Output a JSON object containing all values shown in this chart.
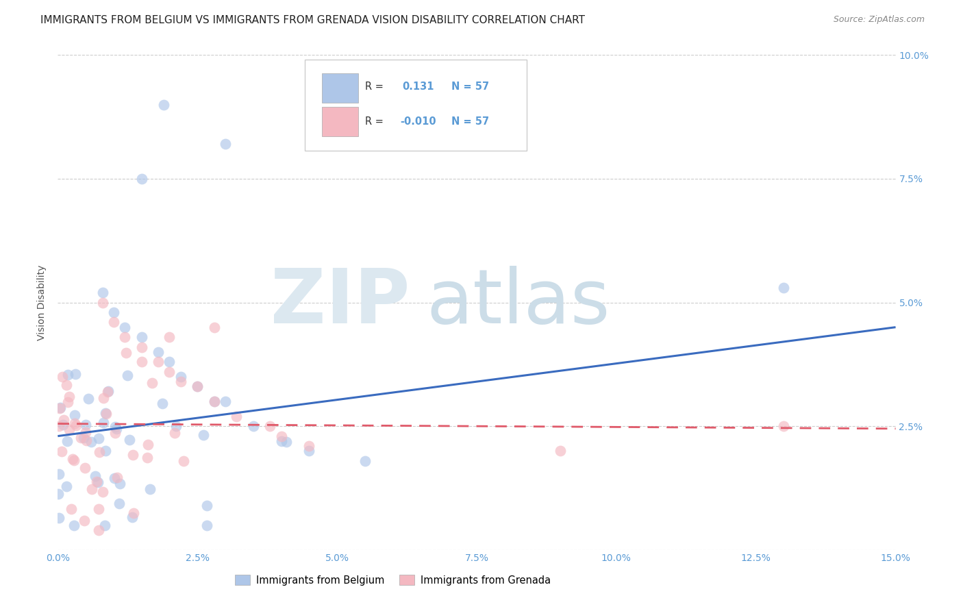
{
  "title": "IMMIGRANTS FROM BELGIUM VS IMMIGRANTS FROM GRENADA VISION DISABILITY CORRELATION CHART",
  "source": "Source: ZipAtlas.com",
  "ylabel": "Vision Disability",
  "xlim": [
    0.0,
    0.15
  ],
  "ylim": [
    0.0,
    0.1
  ],
  "xticks": [
    0.0,
    0.025,
    0.05,
    0.075,
    0.1,
    0.125,
    0.15
  ],
  "xticklabels": [
    "0.0%",
    "2.5%",
    "5.0%",
    "7.5%",
    "10.0%",
    "12.5%",
    "15.0%"
  ],
  "yticks": [
    0.0,
    0.025,
    0.05,
    0.075,
    0.1
  ],
  "yticklabels_right": [
    "",
    "2.5%",
    "5.0%",
    "7.5%",
    "10.0%"
  ],
  "grid_color": "#cccccc",
  "background_color": "#ffffff",
  "belgium_color": "#aec6e8",
  "grenada_color": "#f4b8c1",
  "belgium_line_color": "#3a6bbf",
  "grenada_line_color": "#e05a6a",
  "r_belgium": 0.131,
  "r_grenada": -0.01,
  "n_belgium": 57,
  "n_grenada": 57,
  "legend_label_belgium": "Immigrants from Belgium",
  "legend_label_grenada": "Immigrants from Grenada",
  "tick_color": "#5b9bd5",
  "ylabel_color": "#555555",
  "title_fontsize": 11,
  "axis_label_fontsize": 10,
  "tick_fontsize": 10,
  "bel_line_x0": 0.0,
  "bel_line_y0": 0.023,
  "bel_line_x1": 0.15,
  "bel_line_y1": 0.045,
  "gren_line_x0": 0.0,
  "gren_line_y0": 0.0255,
  "gren_line_x1": 0.15,
  "gren_line_y1": 0.0245
}
